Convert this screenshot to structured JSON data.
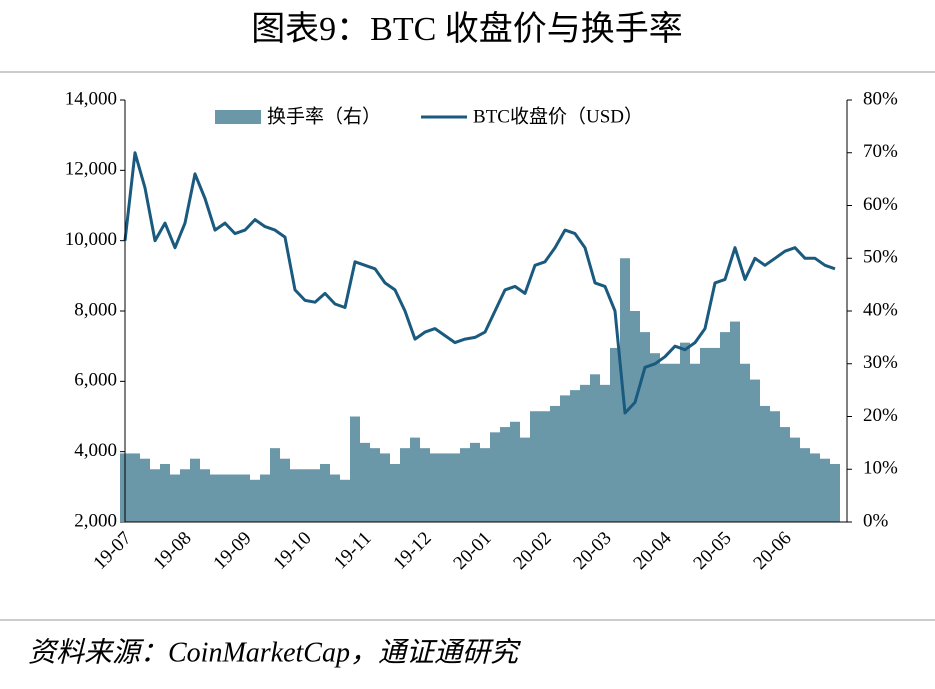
{
  "chart_data": {
    "type": "combo",
    "title": "图表9：BTC 收盘价与换手率",
    "source": "资料来源：CoinMarketCap，通证通研究",
    "categories": [
      "19-07",
      null,
      null,
      null,
      null,
      null,
      "19-08",
      null,
      null,
      null,
      null,
      null,
      "19-09",
      null,
      null,
      null,
      null,
      null,
      "19-10",
      null,
      null,
      null,
      null,
      null,
      "19-11",
      null,
      null,
      null,
      null,
      null,
      "19-12",
      null,
      null,
      null,
      null,
      null,
      "20-01",
      null,
      null,
      null,
      null,
      null,
      "20-02",
      null,
      null,
      null,
      null,
      null,
      "20-03",
      null,
      null,
      null,
      null,
      null,
      "20-04",
      null,
      null,
      null,
      null,
      null,
      "20-05",
      null,
      null,
      null,
      null,
      null,
      "20-06",
      null,
      null,
      null,
      null,
      null
    ],
    "series": [
      {
        "name": "换手率（右）",
        "type": "bar",
        "axis": "y2",
        "color": "#6b98a9",
        "values": [
          13,
          13,
          12,
          10,
          11,
          9,
          10,
          12,
          10,
          9,
          9,
          9,
          9,
          8,
          9,
          14,
          12,
          10,
          10,
          10,
          11,
          9,
          8,
          20,
          15,
          14,
          13,
          11,
          14,
          16,
          14,
          13,
          13,
          13,
          14,
          15,
          14,
          17,
          18,
          19,
          16,
          21,
          21,
          22,
          24,
          25,
          26,
          28,
          26,
          33,
          50,
          40,
          36,
          32,
          30,
          30,
          34,
          30,
          33,
          33,
          36,
          38,
          30,
          27,
          22,
          21,
          18,
          16,
          14,
          13,
          12,
          11
        ]
      },
      {
        "name": "BTC收盘价（USD）",
        "type": "line",
        "color": "#1a5a7e",
        "values": [
          10000,
          12500,
          11500,
          10000,
          10500,
          9800,
          10500,
          11900,
          11200,
          10300,
          10500,
          10200,
          10300,
          10600,
          10400,
          10300,
          10100,
          8600,
          8300,
          8250,
          8500,
          8200,
          8100,
          9400,
          9300,
          9200,
          8800,
          8600,
          8000,
          7200,
          7400,
          7500,
          7300,
          7100,
          7200,
          7250,
          7400,
          8000,
          8600,
          8700,
          8500,
          9300,
          9400,
          9800,
          10300,
          10200,
          9800,
          8800,
          8700,
          8000,
          5100,
          5400,
          6400,
          6500,
          6700,
          7000,
          6900,
          7100,
          7500,
          8800,
          8900,
          9800,
          8900,
          9500,
          9300,
          9500,
          9700,
          9800,
          9500,
          9500,
          9300,
          9200
        ]
      }
    ],
    "ylim": [
      2000,
      14000
    ],
    "yticks": [
      {
        "value": 2000,
        "label": "2,000"
      },
      {
        "value": 4000,
        "label": "4,000"
      },
      {
        "value": 6000,
        "label": "6,000"
      },
      {
        "value": 8000,
        "label": "8,000"
      },
      {
        "value": 10000,
        "label": "10,000"
      },
      {
        "value": 12000,
        "label": "12,000"
      },
      {
        "value": 14000,
        "label": "14,000"
      }
    ],
    "y2lim": [
      0,
      80
    ],
    "y2ticks": [
      {
        "value": 0,
        "label": "0%"
      },
      {
        "value": 10,
        "label": "10%"
      },
      {
        "value": 20,
        "label": "20%"
      },
      {
        "value": 30,
        "label": "30%"
      },
      {
        "value": 40,
        "label": "40%"
      },
      {
        "value": 50,
        "label": "50%"
      },
      {
        "value": 60,
        "label": "60%"
      },
      {
        "value": 70,
        "label": "70%"
      },
      {
        "value": 80,
        "label": "80%"
      }
    ]
  }
}
